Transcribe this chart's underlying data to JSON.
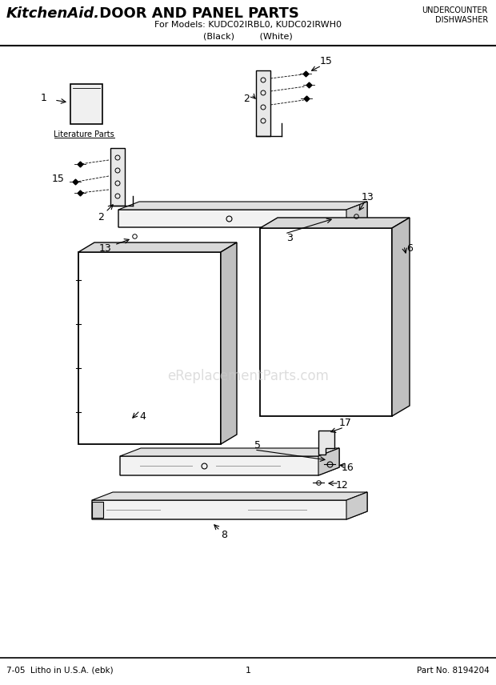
{
  "title_brand": "KitchenAid.",
  "title_main": " DOOR AND PANEL PARTS",
  "subtitle1": "For Models: KUDC02IRBL0, KUDC02IRWH0",
  "subtitle2": "(Black)         (White)",
  "top_right1": "UNDERCOUNTER",
  "top_right2": "DISHWASHER",
  "footer_left": "7-05  Litho in U.S.A. (ebk)",
  "footer_center": "1",
  "footer_right": "Part No. 8194204",
  "watermark": "eReplacementParts.com",
  "bg_color": "#ffffff",
  "line_color": "#000000",
  "gray_color": "#888888"
}
